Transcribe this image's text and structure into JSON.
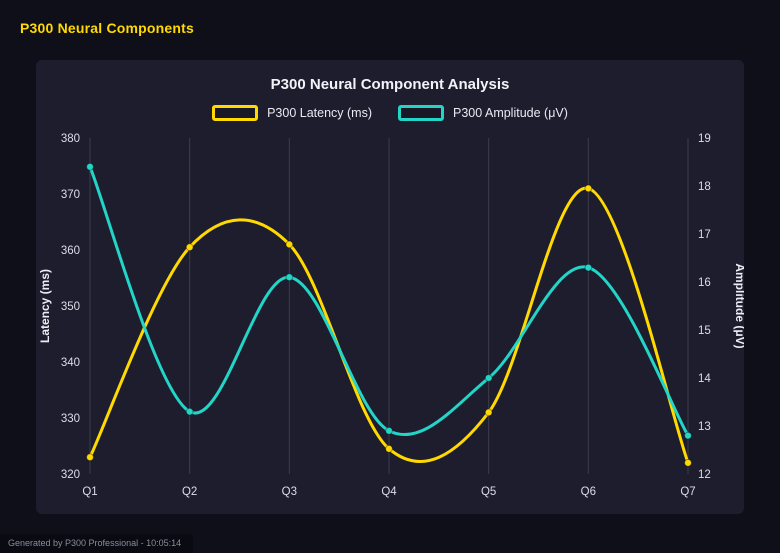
{
  "page": {
    "header": "P300 Neural Components",
    "footer": "Generated by P300 Professional - 10:05:14"
  },
  "chart_data": {
    "type": "line",
    "title": "P300 Neural Component Analysis",
    "categories": [
      "Q1",
      "Q2",
      "Q3",
      "Q4",
      "Q5",
      "Q6",
      "Q7"
    ],
    "series": [
      {
        "name": "P300 Latency (ms)",
        "axis": "left",
        "color": "#ffd900",
        "values": [
          323,
          360.5,
          361,
          324.5,
          331,
          371,
          322
        ]
      },
      {
        "name": "P300 Amplitude (μV)",
        "axis": "right",
        "color": "#23d5c6",
        "values": [
          18.4,
          13.3,
          16.1,
          12.9,
          14.0,
          16.3,
          12.8
        ]
      }
    ],
    "left_axis": {
      "label": "Latency (ms)",
      "min": 320,
      "max": 380,
      "step": 10
    },
    "right_axis": {
      "label": "Amplitude (μV)",
      "min": 12,
      "max": 19,
      "step": 1
    },
    "grid": "vertical",
    "legend_position": "top",
    "smoothing": "spline"
  },
  "colors": {
    "page_background": "#0f0f19",
    "panel_background": "#1d1d2e",
    "header_text": "#ffd900",
    "gridline": "rgba(255,255,255,0.14)"
  }
}
